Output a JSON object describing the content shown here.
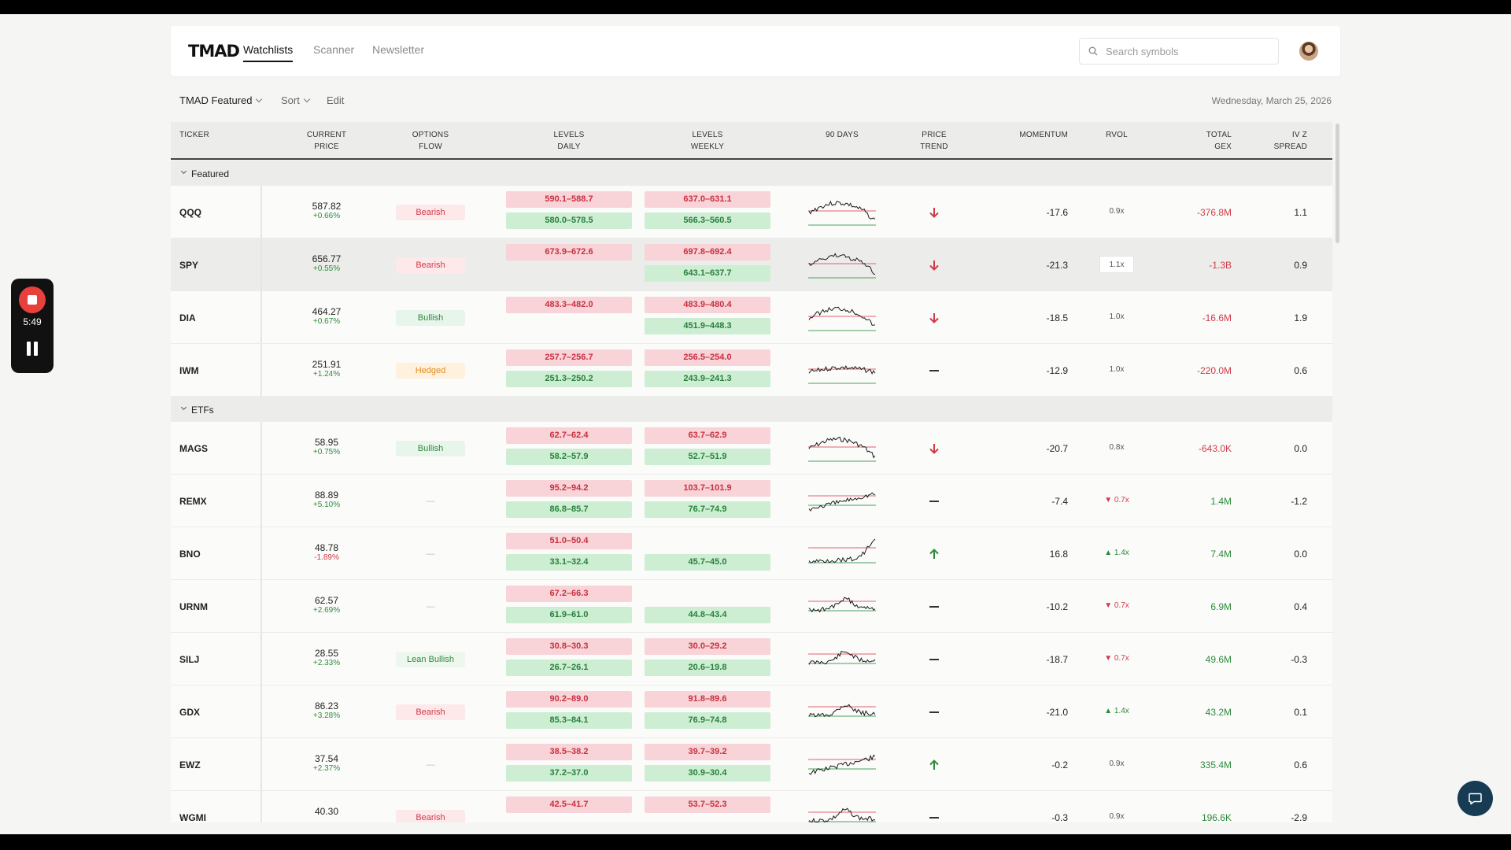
{
  "app": {
    "logo": "TMAD",
    "tabs": [
      {
        "label": "Watchlists",
        "active": true
      },
      {
        "label": "Scanner",
        "active": false
      },
      {
        "label": "Newsletter",
        "active": false
      }
    ],
    "search_placeholder": "Search symbols"
  },
  "toolbar": {
    "watchlist": "TMAD Featured",
    "sort": "Sort",
    "edit": "Edit",
    "date": "Wednesday, March 25, 2026"
  },
  "columns": [
    {
      "line1": "",
      "line2": "TICKER"
    },
    {
      "line1": "CURRENT",
      "line2": "PRICE"
    },
    {
      "line1": "OPTIONS",
      "line2": "FLOW"
    },
    {
      "line1": "LEVELS",
      "line2": "DAILY"
    },
    {
      "line1": "LEVELS",
      "line2": "WEEKLY"
    },
    {
      "line1": "",
      "line2": "90 DAYS"
    },
    {
      "line1": "PRICE",
      "line2": "TREND"
    },
    {
      "line1": "",
      "line2": "MOMENTUM"
    },
    {
      "line1": "",
      "line2": "RVOL"
    },
    {
      "line1": "TOTAL",
      "line2": "GEX"
    },
    {
      "line1": "IV Z",
      "line2": "SPREAD"
    }
  ],
  "groups": [
    {
      "name": "Featured",
      "rows": [
        {
          "ticker": "QQQ",
          "price": "587.82",
          "change": "+0.66%",
          "dir": "pos",
          "flow": "Bearish",
          "flow_type": "bearish",
          "daily": [
            "590.1–588.7",
            "580.0–578.5"
          ],
          "weekly": [
            "637.0–631.1",
            "566.3–560.5"
          ],
          "trend": "down",
          "momentum": "-17.6",
          "rvol": "0.9x",
          "rvol_type": "neutral",
          "gex": "-376.8M",
          "gex_dir": "neg",
          "ivz": "1.1",
          "spark_style": "featured"
        },
        {
          "ticker": "SPY",
          "price": "656.77",
          "change": "+0.55%",
          "dir": "pos",
          "flow": "Bearish",
          "flow_type": "bearish",
          "daily": [
            "673.9–672.6",
            ""
          ],
          "weekly": [
            "697.8–692.4",
            "643.1–637.7"
          ],
          "trend": "down",
          "momentum": "-21.3",
          "rvol": "1.1x",
          "rvol_type": "box",
          "gex": "-1.3B",
          "gex_dir": "neg",
          "ivz": "0.9",
          "spark_style": "featured",
          "highlight": true
        },
        {
          "ticker": "DIA",
          "price": "464.27",
          "change": "+0.67%",
          "dir": "pos",
          "flow": "Bullish",
          "flow_type": "bullish",
          "daily": [
            "483.3–482.0",
            ""
          ],
          "weekly": [
            "483.9–480.4",
            "451.9–448.3"
          ],
          "trend": "down",
          "momentum": "-18.5",
          "rvol": "1.0x",
          "rvol_type": "neutral",
          "gex": "-16.6M",
          "gex_dir": "neg",
          "ivz": "1.9",
          "spark_style": "featured"
        },
        {
          "ticker": "IWM",
          "price": "251.91",
          "change": "+1.24%",
          "dir": "pos",
          "flow": "Hedged",
          "flow_type": "hedged",
          "daily": [
            "257.7–256.7",
            "251.3–250.2"
          ],
          "weekly": [
            "256.5–254.0",
            "243.9–241.3"
          ],
          "trend": "flat",
          "momentum": "-12.9",
          "rvol": "1.0x",
          "rvol_type": "neutral",
          "gex": "-220.0M",
          "gex_dir": "neg",
          "ivz": "0.6",
          "spark_style": "flat"
        }
      ]
    },
    {
      "name": "ETFs",
      "rows": [
        {
          "ticker": "MAGS",
          "price": "58.95",
          "change": "+0.75%",
          "dir": "pos",
          "flow": "Bullish",
          "flow_type": "bullish",
          "daily": [
            "62.7–62.4",
            "58.2–57.9"
          ],
          "weekly": [
            "63.7–62.9",
            "52.7–51.9"
          ],
          "trend": "down",
          "momentum": "-20.7",
          "rvol": "0.8x",
          "rvol_type": "neutral",
          "gex": "-643.0K",
          "gex_dir": "neg",
          "ivz": "0.0",
          "spark_style": "featured"
        },
        {
          "ticker": "REMX",
          "price": "88.89",
          "change": "+5.10%",
          "dir": "pos",
          "flow": "—",
          "flow_type": "none",
          "daily": [
            "95.2–94.2",
            "86.8–85.7"
          ],
          "weekly": [
            "103.7–101.9",
            "76.7–74.9"
          ],
          "trend": "flat",
          "momentum": "-7.4",
          "rvol": "0.7x",
          "rvol_type": "down",
          "gex": "1.4M",
          "gex_dir": "pos",
          "ivz": "-1.2",
          "spark_style": "rise"
        },
        {
          "ticker": "BNO",
          "price": "48.78",
          "change": "-1.89%",
          "dir": "neg",
          "flow": "—",
          "flow_type": "none",
          "daily": [
            "51.0–50.4",
            "33.1–32.4"
          ],
          "weekly": [
            "",
            "45.7–45.0"
          ],
          "trend": "up",
          "momentum": "16.8",
          "rvol": "1.4x",
          "rvol_type": "up",
          "gex": "7.4M",
          "gex_dir": "pos",
          "ivz": "0.0",
          "spark_style": "spike"
        },
        {
          "ticker": "URNM",
          "price": "62.57",
          "change": "+2.69%",
          "dir": "pos",
          "flow": "—",
          "flow_type": "none",
          "daily": [
            "67.2–66.3",
            "61.9–61.0"
          ],
          "weekly": [
            "",
            "44.8–43.4"
          ],
          "trend": "flat",
          "momentum": "-10.2",
          "rvol": "0.7x",
          "rvol_type": "down",
          "gex": "6.9M",
          "gex_dir": "pos",
          "ivz": "0.4",
          "spark_style": "hump"
        },
        {
          "ticker": "SILJ",
          "price": "28.55",
          "change": "+2.33%",
          "dir": "pos",
          "flow": "Lean Bullish",
          "flow_type": "lean-bullish",
          "daily": [
            "30.8–30.3",
            "26.7–26.1"
          ],
          "weekly": [
            "30.0–29.2",
            "20.6–19.8"
          ],
          "trend": "flat",
          "momentum": "-18.7",
          "rvol": "0.7x",
          "rvol_type": "down",
          "gex": "49.6M",
          "gex_dir": "pos",
          "ivz": "-0.3",
          "spark_style": "hump"
        },
        {
          "ticker": "GDX",
          "price": "86.23",
          "change": "+3.28%",
          "dir": "pos",
          "flow": "Bearish",
          "flow_type": "bearish",
          "daily": [
            "90.2–89.0",
            "85.3–84.1"
          ],
          "weekly": [
            "91.8–89.6",
            "76.9–74.8"
          ],
          "trend": "flat",
          "momentum": "-21.0",
          "rvol": "1.4x",
          "rvol_type": "up",
          "gex": "43.2M",
          "gex_dir": "pos",
          "ivz": "0.1",
          "spark_style": "hump"
        },
        {
          "ticker": "EWZ",
          "price": "37.54",
          "change": "+2.37%",
          "dir": "pos",
          "flow": "—",
          "flow_type": "none",
          "daily": [
            "38.5–38.2",
            "37.2–37.0"
          ],
          "weekly": [
            "39.7–39.2",
            "30.9–30.4"
          ],
          "trend": "up",
          "momentum": "-0.2",
          "rvol": "0.9x",
          "rvol_type": "neutral",
          "gex": "335.4M",
          "gex_dir": "pos",
          "ivz": "0.6",
          "spark_style": "rise"
        },
        {
          "ticker": "WGMI",
          "price": "40.30",
          "change": "",
          "dir": "pos",
          "flow": "Bearish",
          "flow_type": "bearish",
          "daily": [
            "42.5–41.7",
            ""
          ],
          "weekly": [
            "53.7–52.3",
            ""
          ],
          "trend": "flat",
          "momentum": "-0.3",
          "rvol": "0.9x",
          "rvol_type": "neutral",
          "gex": "196.6K",
          "gex_dir": "pos",
          "ivz": "-2.9",
          "spark_style": "hump"
        }
      ]
    }
  ],
  "recorder": {
    "time": "5:49"
  },
  "colors": {
    "accent_red": "#d03a48",
    "accent_green": "#2e8b3a",
    "recorder_red": "#e8403c",
    "chat": "#163b52"
  }
}
